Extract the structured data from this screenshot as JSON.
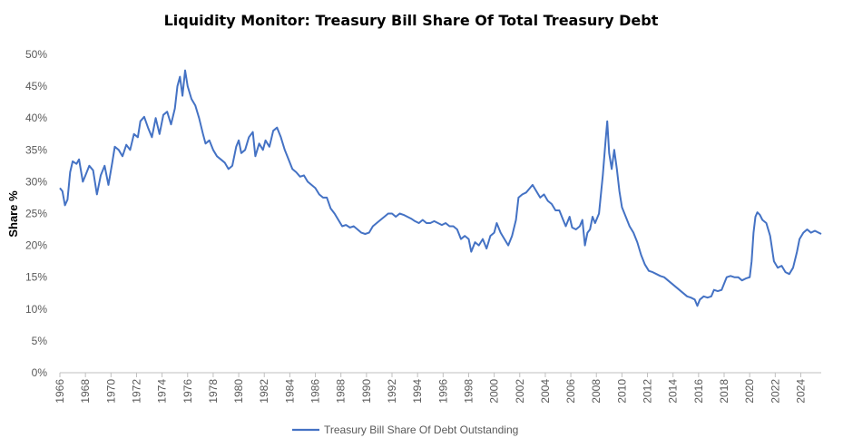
{
  "chart_data": {
    "type": "line",
    "title": "Liquidity Monitor: Treasury Bill Share Of Total Treasury Debt",
    "xlabel": "",
    "ylabel": "Share %",
    "xlim": [
      1966,
      2025.6
    ],
    "ylim": [
      0,
      50
    ],
    "x_ticks": [
      1966,
      1968,
      1970,
      1972,
      1974,
      1976,
      1978,
      1980,
      1982,
      1984,
      1986,
      1988,
      1990,
      1992,
      1994,
      1996,
      1998,
      2000,
      2002,
      2004,
      2006,
      2008,
      2010,
      2012,
      2014,
      2016,
      2018,
      2020,
      2022,
      2024
    ],
    "x_tick_labels": [
      "1966",
      "1968",
      "1970",
      "1972",
      "1974",
      "1976",
      "1978",
      "1980",
      "1982",
      "1984",
      "1986",
      "1988",
      "1990",
      "1992",
      "1994",
      "1996",
      "1998",
      "2000",
      "2002",
      "2004",
      "2006",
      "2008",
      "2010",
      "2012",
      "2014",
      "2016",
      "2018",
      "2020",
      "2022",
      "2024"
    ],
    "y_ticks": [
      0,
      5,
      10,
      15,
      20,
      25,
      30,
      35,
      40,
      45,
      50
    ],
    "y_tick_labels": [
      "0%",
      "5%",
      "10%",
      "15%",
      "20%",
      "25%",
      "30%",
      "35%",
      "40%",
      "45%",
      "50%"
    ],
    "grid": false,
    "legend_position": "bottom",
    "series": [
      {
        "name": "Treasury Bill Share Of Debt Outstanding",
        "color": "#4472c4",
        "points": [
          [
            1966.0,
            29.0
          ],
          [
            1966.2,
            28.5
          ],
          [
            1966.4,
            26.3
          ],
          [
            1966.6,
            27.2
          ],
          [
            1966.8,
            31.5
          ],
          [
            1967.0,
            33.2
          ],
          [
            1967.3,
            32.8
          ],
          [
            1967.5,
            33.5
          ],
          [
            1967.8,
            30.0
          ],
          [
            1968.0,
            31.0
          ],
          [
            1968.3,
            32.5
          ],
          [
            1968.6,
            31.8
          ],
          [
            1968.9,
            28.0
          ],
          [
            1969.2,
            31.0
          ],
          [
            1969.5,
            32.5
          ],
          [
            1969.8,
            29.5
          ],
          [
            1970.1,
            33.0
          ],
          [
            1970.3,
            35.5
          ],
          [
            1970.6,
            35.0
          ],
          [
            1970.9,
            34.0
          ],
          [
            1971.2,
            35.8
          ],
          [
            1971.5,
            35.0
          ],
          [
            1971.8,
            37.5
          ],
          [
            1972.1,
            37.0
          ],
          [
            1972.3,
            39.5
          ],
          [
            1972.6,
            40.2
          ],
          [
            1972.9,
            38.5
          ],
          [
            1973.2,
            37.0
          ],
          [
            1973.5,
            40.0
          ],
          [
            1973.8,
            37.5
          ],
          [
            1974.1,
            40.5
          ],
          [
            1974.4,
            41.0
          ],
          [
            1974.7,
            39.0
          ],
          [
            1975.0,
            41.5
          ],
          [
            1975.2,
            45.0
          ],
          [
            1975.4,
            46.5
          ],
          [
            1975.6,
            43.5
          ],
          [
            1975.8,
            47.5
          ],
          [
            1976.0,
            45.0
          ],
          [
            1976.3,
            43.0
          ],
          [
            1976.6,
            42.0
          ],
          [
            1976.9,
            40.0
          ],
          [
            1977.2,
            37.5
          ],
          [
            1977.4,
            36.0
          ],
          [
            1977.7,
            36.5
          ],
          [
            1978.0,
            35.0
          ],
          [
            1978.3,
            34.0
          ],
          [
            1978.6,
            33.5
          ],
          [
            1978.9,
            33.0
          ],
          [
            1979.2,
            32.0
          ],
          [
            1979.5,
            32.5
          ],
          [
            1979.8,
            35.5
          ],
          [
            1980.0,
            36.5
          ],
          [
            1980.2,
            34.5
          ],
          [
            1980.5,
            35.0
          ],
          [
            1980.8,
            37.0
          ],
          [
            1981.1,
            37.8
          ],
          [
            1981.3,
            34.0
          ],
          [
            1981.6,
            36.0
          ],
          [
            1981.9,
            35.0
          ],
          [
            1982.1,
            36.5
          ],
          [
            1982.4,
            35.5
          ],
          [
            1982.7,
            38.0
          ],
          [
            1983.0,
            38.5
          ],
          [
            1983.3,
            37.0
          ],
          [
            1983.6,
            35.0
          ],
          [
            1983.9,
            33.5
          ],
          [
            1984.2,
            32.0
          ],
          [
            1984.5,
            31.5
          ],
          [
            1984.8,
            30.8
          ],
          [
            1985.1,
            31.0
          ],
          [
            1985.4,
            30.0
          ],
          [
            1985.7,
            29.5
          ],
          [
            1986.0,
            29.0
          ],
          [
            1986.3,
            28.0
          ],
          [
            1986.6,
            27.5
          ],
          [
            1986.9,
            27.5
          ],
          [
            1987.2,
            25.8
          ],
          [
            1987.5,
            25.0
          ],
          [
            1987.8,
            24.0
          ],
          [
            1988.1,
            23.0
          ],
          [
            1988.4,
            23.2
          ],
          [
            1988.7,
            22.8
          ],
          [
            1989.0,
            23.0
          ],
          [
            1989.3,
            22.5
          ],
          [
            1989.6,
            22.0
          ],
          [
            1989.9,
            21.8
          ],
          [
            1990.2,
            22.0
          ],
          [
            1990.5,
            23.0
          ],
          [
            1990.8,
            23.5
          ],
          [
            1991.1,
            24.0
          ],
          [
            1991.4,
            24.5
          ],
          [
            1991.7,
            25.0
          ],
          [
            1992.0,
            25.0
          ],
          [
            1992.3,
            24.5
          ],
          [
            1992.6,
            25.0
          ],
          [
            1992.9,
            24.8
          ],
          [
            1993.2,
            24.5
          ],
          [
            1993.5,
            24.2
          ],
          [
            1993.8,
            23.8
          ],
          [
            1994.1,
            23.5
          ],
          [
            1994.4,
            24.0
          ],
          [
            1994.7,
            23.5
          ],
          [
            1995.0,
            23.5
          ],
          [
            1995.3,
            23.8
          ],
          [
            1995.6,
            23.5
          ],
          [
            1995.9,
            23.2
          ],
          [
            1996.2,
            23.5
          ],
          [
            1996.5,
            23.0
          ],
          [
            1996.8,
            23.0
          ],
          [
            1997.1,
            22.5
          ],
          [
            1997.4,
            21.0
          ],
          [
            1997.7,
            21.5
          ],
          [
            1998.0,
            21.0
          ],
          [
            1998.2,
            19.0
          ],
          [
            1998.5,
            20.5
          ],
          [
            1998.8,
            20.0
          ],
          [
            1999.1,
            21.0
          ],
          [
            1999.4,
            19.5
          ],
          [
            1999.7,
            21.5
          ],
          [
            2000.0,
            22.0
          ],
          [
            2000.2,
            23.5
          ],
          [
            2000.5,
            22.0
          ],
          [
            2000.8,
            21.0
          ],
          [
            2001.1,
            20.0
          ],
          [
            2001.4,
            21.5
          ],
          [
            2001.7,
            24.0
          ],
          [
            2001.9,
            27.5
          ],
          [
            2002.2,
            28.0
          ],
          [
            2002.5,
            28.3
          ],
          [
            2002.8,
            29.0
          ],
          [
            2003.0,
            29.5
          ],
          [
            2003.3,
            28.5
          ],
          [
            2003.6,
            27.5
          ],
          [
            2003.9,
            28.0
          ],
          [
            2004.2,
            27.0
          ],
          [
            2004.5,
            26.5
          ],
          [
            2004.8,
            25.5
          ],
          [
            2005.1,
            25.5
          ],
          [
            2005.4,
            24.0
          ],
          [
            2005.6,
            23.0
          ],
          [
            2005.9,
            24.5
          ],
          [
            2006.1,
            22.8
          ],
          [
            2006.4,
            22.5
          ],
          [
            2006.7,
            23.0
          ],
          [
            2006.9,
            24.0
          ],
          [
            2007.1,
            20.0
          ],
          [
            2007.3,
            22.0
          ],
          [
            2007.5,
            22.5
          ],
          [
            2007.7,
            24.5
          ],
          [
            2007.9,
            23.5
          ],
          [
            2008.2,
            25.0
          ],
          [
            2008.5,
            31.0
          ],
          [
            2008.7,
            36.0
          ],
          [
            2008.85,
            39.5
          ],
          [
            2009.0,
            34.5
          ],
          [
            2009.2,
            32.0
          ],
          [
            2009.4,
            35.0
          ],
          [
            2009.6,
            32.0
          ],
          [
            2009.8,
            28.5
          ],
          [
            2010.0,
            26.0
          ],
          [
            2010.3,
            24.5
          ],
          [
            2010.6,
            23.0
          ],
          [
            2010.9,
            22.0
          ],
          [
            2011.2,
            20.5
          ],
          [
            2011.5,
            18.5
          ],
          [
            2011.8,
            17.0
          ],
          [
            2012.1,
            16.0
          ],
          [
            2012.4,
            15.8
          ],
          [
            2012.7,
            15.5
          ],
          [
            2013.0,
            15.2
          ],
          [
            2013.3,
            15.0
          ],
          [
            2013.6,
            14.5
          ],
          [
            2013.9,
            14.0
          ],
          [
            2014.2,
            13.5
          ],
          [
            2014.5,
            13.0
          ],
          [
            2014.8,
            12.5
          ],
          [
            2015.1,
            12.0
          ],
          [
            2015.4,
            11.8
          ],
          [
            2015.7,
            11.5
          ],
          [
            2015.9,
            10.5
          ],
          [
            2016.1,
            11.5
          ],
          [
            2016.4,
            12.0
          ],
          [
            2016.7,
            11.8
          ],
          [
            2017.0,
            12.0
          ],
          [
            2017.2,
            13.0
          ],
          [
            2017.5,
            12.8
          ],
          [
            2017.8,
            13.0
          ],
          [
            2018.0,
            14.0
          ],
          [
            2018.2,
            15.0
          ],
          [
            2018.5,
            15.2
          ],
          [
            2018.8,
            15.0
          ],
          [
            2019.1,
            15.0
          ],
          [
            2019.4,
            14.5
          ],
          [
            2019.7,
            14.8
          ],
          [
            2020.0,
            15.0
          ],
          [
            2020.15,
            17.5
          ],
          [
            2020.3,
            22.0
          ],
          [
            2020.45,
            24.5
          ],
          [
            2020.6,
            25.2
          ],
          [
            2020.8,
            24.8
          ],
          [
            2021.0,
            24.0
          ],
          [
            2021.3,
            23.5
          ],
          [
            2021.6,
            21.5
          ],
          [
            2021.9,
            17.5
          ],
          [
            2022.2,
            16.5
          ],
          [
            2022.5,
            16.8
          ],
          [
            2022.8,
            15.8
          ],
          [
            2023.1,
            15.5
          ],
          [
            2023.4,
            16.5
          ],
          [
            2023.7,
            19.0
          ],
          [
            2023.9,
            21.0
          ],
          [
            2024.2,
            22.0
          ],
          [
            2024.5,
            22.5
          ],
          [
            2024.8,
            22.0
          ],
          [
            2025.1,
            22.3
          ],
          [
            2025.4,
            22.0
          ],
          [
            2025.6,
            21.8
          ]
        ]
      }
    ]
  }
}
